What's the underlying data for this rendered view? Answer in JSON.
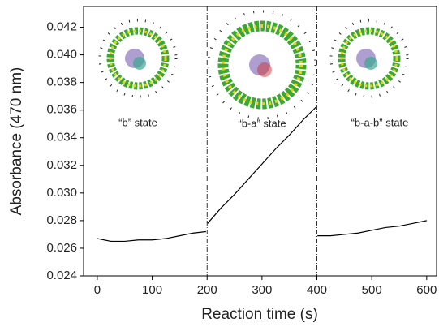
{
  "chart_data": {
    "type": "line",
    "x": [
      0,
      25,
      50,
      75,
      100,
      125,
      150,
      175,
      198,
      199,
      201,
      225,
      250,
      275,
      300,
      325,
      350,
      375,
      398,
      399,
      401,
      425,
      450,
      475,
      500,
      525,
      550,
      575,
      600
    ],
    "values": [
      0.0267,
      0.0265,
      0.0265,
      0.0266,
      0.0266,
      0.0267,
      0.0269,
      0.0271,
      0.0272,
      null,
      0.0278,
      0.0289,
      0.0299,
      0.031,
      0.0321,
      0.0332,
      0.0342,
      0.0353,
      0.0362,
      null,
      0.0269,
      0.0269,
      0.027,
      0.0271,
      0.0273,
      0.0275,
      0.0276,
      0.0278,
      0.028
    ],
    "color": "#000000",
    "xlabel": "Reaction time (s)",
    "ylabel": "Absorbance (470 nm)",
    "xlim": [
      -25,
      618
    ],
    "ylim": [
      0.024,
      0.0435
    ],
    "xticks": [
      0,
      100,
      200,
      300,
      400,
      500,
      600
    ],
    "yticks": [
      0.024,
      0.026,
      0.028,
      {
        "value": 0.03,
        "label": "0.030"
      },
      0.032,
      0.034,
      0.036,
      0.038,
      {
        "value": 0.04,
        "label": "0.040"
      },
      0.042
    ],
    "dividers": [
      200,
      400
    ],
    "annotations": [
      "“b” state",
      "“b-a” state",
      "“b-a-b” state"
    ]
  }
}
